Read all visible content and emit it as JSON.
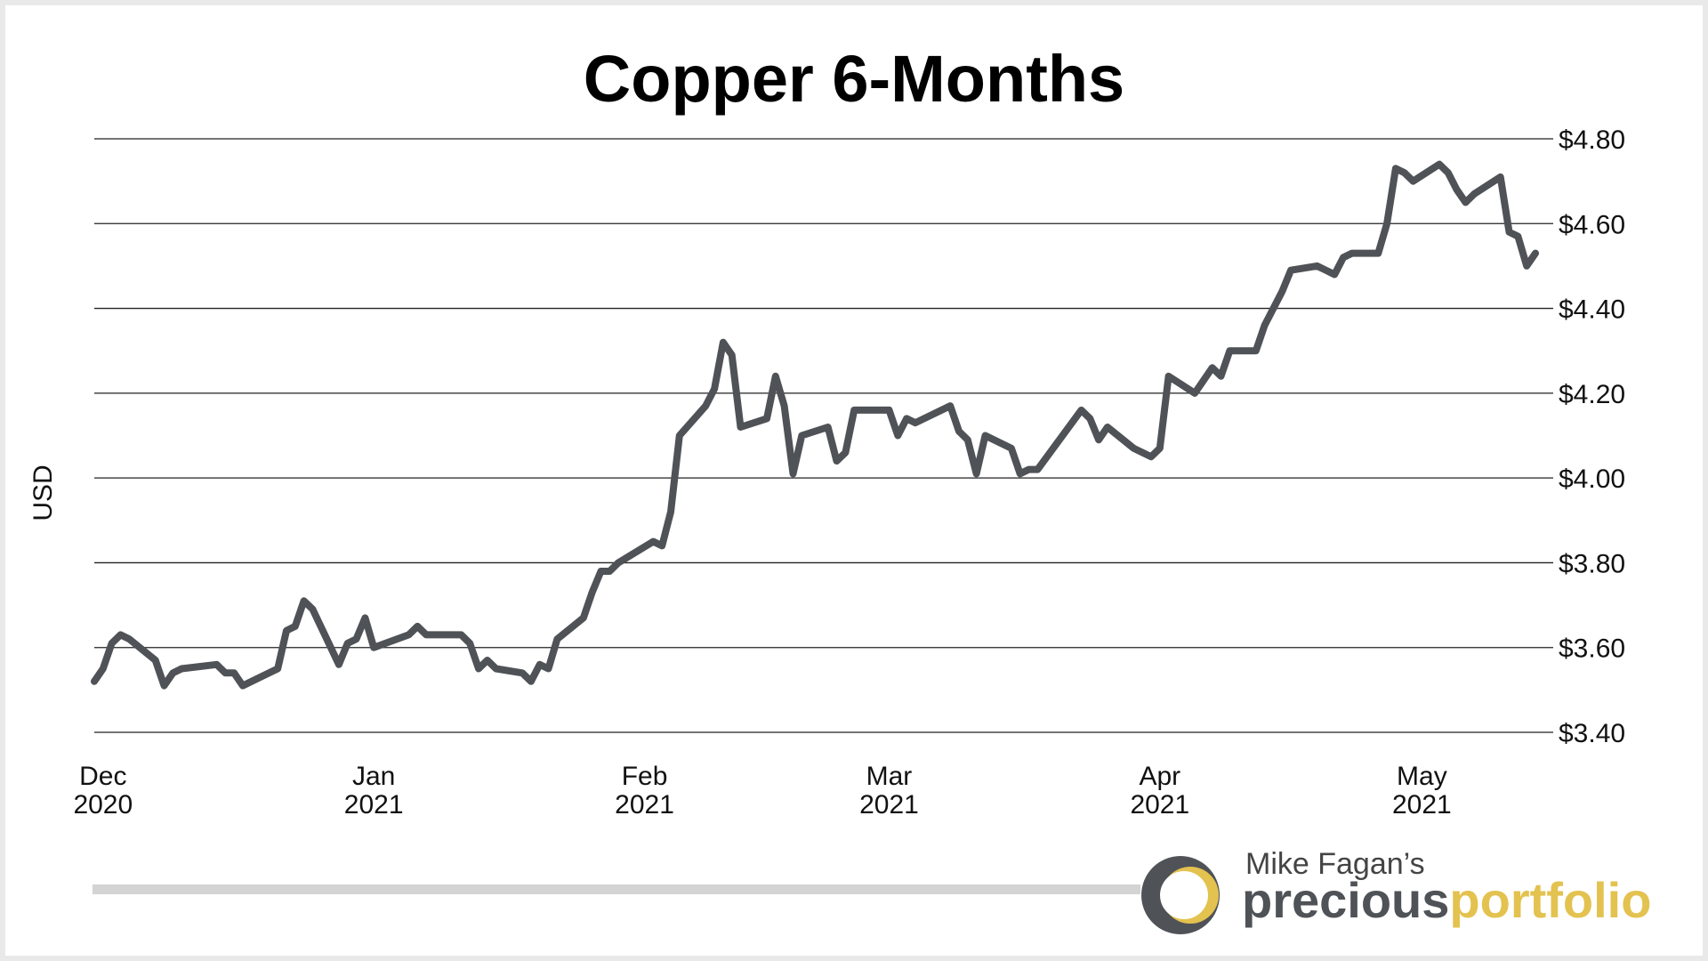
{
  "chart_data": {
    "type": "line",
    "title": "Copper 6-Months",
    "ylabel": "USD",
    "xlabel": "",
    "ylim": [
      3.4,
      4.8
    ],
    "yticks": [
      3.4,
      3.6,
      3.8,
      4.0,
      4.2,
      4.4,
      4.6,
      4.8
    ],
    "ytick_labels": [
      "$3.40",
      "$3.60",
      "$3.80",
      "$4.00",
      "$4.20",
      "$4.40",
      "$4.60",
      "$4.80"
    ],
    "xlim": [
      "2020-11-30",
      "2021-05-14"
    ],
    "xticks": [
      {
        "date": "2020-12-01",
        "month": "Dec",
        "year": "2020"
      },
      {
        "date": "2021-01-01",
        "month": "Jan",
        "year": "2021"
      },
      {
        "date": "2021-02-01",
        "month": "Feb",
        "year": "2021"
      },
      {
        "date": "2021-03-01",
        "month": "Mar",
        "year": "2021"
      },
      {
        "date": "2021-04-01",
        "month": "Apr",
        "year": "2021"
      },
      {
        "date": "2021-05-01",
        "month": "May",
        "year": "2021"
      }
    ],
    "grid": true,
    "legend": "none",
    "line_color": "#4f5256",
    "series": [
      {
        "points": [
          [
            "2020-11-30",
            3.52
          ],
          [
            "2020-12-01",
            3.55
          ],
          [
            "2020-12-02",
            3.61
          ],
          [
            "2020-12-03",
            3.63
          ],
          [
            "2020-12-04",
            3.62
          ],
          [
            "2020-12-07",
            3.57
          ],
          [
            "2020-12-08",
            3.51
          ],
          [
            "2020-12-09",
            3.54
          ],
          [
            "2020-12-10",
            3.55
          ],
          [
            "2020-12-14",
            3.56
          ],
          [
            "2020-12-15",
            3.54
          ],
          [
            "2020-12-16",
            3.54
          ],
          [
            "2020-12-17",
            3.51
          ],
          [
            "2020-12-21",
            3.55
          ],
          [
            "2020-12-22",
            3.64
          ],
          [
            "2020-12-23",
            3.65
          ],
          [
            "2020-12-24",
            3.71
          ],
          [
            "2020-12-25",
            3.69
          ],
          [
            "2020-12-28",
            3.56
          ],
          [
            "2020-12-29",
            3.61
          ],
          [
            "2020-12-30",
            3.62
          ],
          [
            "2020-12-31",
            3.67
          ],
          [
            "2021-01-01",
            3.6
          ],
          [
            "2021-01-05",
            3.63
          ],
          [
            "2021-01-06",
            3.65
          ],
          [
            "2021-01-07",
            3.63
          ],
          [
            "2021-01-11",
            3.63
          ],
          [
            "2021-01-12",
            3.61
          ],
          [
            "2021-01-13",
            3.55
          ],
          [
            "2021-01-14",
            3.57
          ],
          [
            "2021-01-15",
            3.55
          ],
          [
            "2021-01-18",
            3.54
          ],
          [
            "2021-01-19",
            3.52
          ],
          [
            "2021-01-20",
            3.56
          ],
          [
            "2021-01-21",
            3.55
          ],
          [
            "2021-01-22",
            3.62
          ],
          [
            "2021-01-25",
            3.67
          ],
          [
            "2021-01-26",
            3.73
          ],
          [
            "2021-01-27",
            3.78
          ],
          [
            "2021-01-28",
            3.78
          ],
          [
            "2021-01-29",
            3.8
          ],
          [
            "2021-02-02",
            3.85
          ],
          [
            "2021-02-03",
            3.84
          ],
          [
            "2021-02-04",
            3.92
          ],
          [
            "2021-02-05",
            4.1
          ],
          [
            "2021-02-08",
            4.17
          ],
          [
            "2021-02-09",
            4.21
          ],
          [
            "2021-02-10",
            4.32
          ],
          [
            "2021-02-11",
            4.29
          ],
          [
            "2021-02-12",
            4.12
          ],
          [
            "2021-02-15",
            4.14
          ],
          [
            "2021-02-16",
            4.24
          ],
          [
            "2021-02-17",
            4.17
          ],
          [
            "2021-02-18",
            4.01
          ],
          [
            "2021-02-19",
            4.1
          ],
          [
            "2021-02-22",
            4.12
          ],
          [
            "2021-02-23",
            4.04
          ],
          [
            "2021-02-24",
            4.06
          ],
          [
            "2021-02-25",
            4.16
          ],
          [
            "2021-03-01",
            4.16
          ],
          [
            "2021-03-02",
            4.1
          ],
          [
            "2021-03-03",
            4.14
          ],
          [
            "2021-03-04",
            4.13
          ],
          [
            "2021-03-08",
            4.17
          ],
          [
            "2021-03-09",
            4.11
          ],
          [
            "2021-03-10",
            4.09
          ],
          [
            "2021-03-11",
            4.01
          ],
          [
            "2021-03-12",
            4.1
          ],
          [
            "2021-03-15",
            4.07
          ],
          [
            "2021-03-16",
            4.01
          ],
          [
            "2021-03-17",
            4.02
          ],
          [
            "2021-03-18",
            4.02
          ],
          [
            "2021-03-23",
            4.16
          ],
          [
            "2021-03-24",
            4.14
          ],
          [
            "2021-03-25",
            4.09
          ],
          [
            "2021-03-26",
            4.12
          ],
          [
            "2021-03-29",
            4.07
          ],
          [
            "2021-03-31",
            4.05
          ],
          [
            "2021-04-01",
            4.07
          ],
          [
            "2021-04-02",
            4.24
          ],
          [
            "2021-04-05",
            4.2
          ],
          [
            "2021-04-07",
            4.26
          ],
          [
            "2021-04-08",
            4.24
          ],
          [
            "2021-04-09",
            4.3
          ],
          [
            "2021-04-12",
            4.3
          ],
          [
            "2021-04-13",
            4.36
          ],
          [
            "2021-04-15",
            4.44
          ],
          [
            "2021-04-16",
            4.49
          ],
          [
            "2021-04-19",
            4.5
          ],
          [
            "2021-04-20",
            4.49
          ],
          [
            "2021-04-21",
            4.48
          ],
          [
            "2021-04-22",
            4.52
          ],
          [
            "2021-04-23",
            4.53
          ],
          [
            "2021-04-26",
            4.53
          ],
          [
            "2021-04-27",
            4.6
          ],
          [
            "2021-04-28",
            4.73
          ],
          [
            "2021-04-29",
            4.72
          ],
          [
            "2021-04-30",
            4.7
          ],
          [
            "2021-05-03",
            4.74
          ],
          [
            "2021-05-04",
            4.72
          ],
          [
            "2021-05-05",
            4.68
          ],
          [
            "2021-05-06",
            4.65
          ],
          [
            "2021-05-07",
            4.67
          ],
          [
            "2021-05-10",
            4.71
          ],
          [
            "2021-05-11",
            4.58
          ],
          [
            "2021-05-12",
            4.57
          ],
          [
            "2021-05-13",
            4.5
          ],
          [
            "2021-05-14",
            4.53
          ]
        ]
      }
    ]
  },
  "branding": {
    "line1": "Mike Fagan’s",
    "word_a": "precious",
    "word_b": "portfolio",
    "accent": "#e3c24f",
    "dark": "#4f5256"
  }
}
